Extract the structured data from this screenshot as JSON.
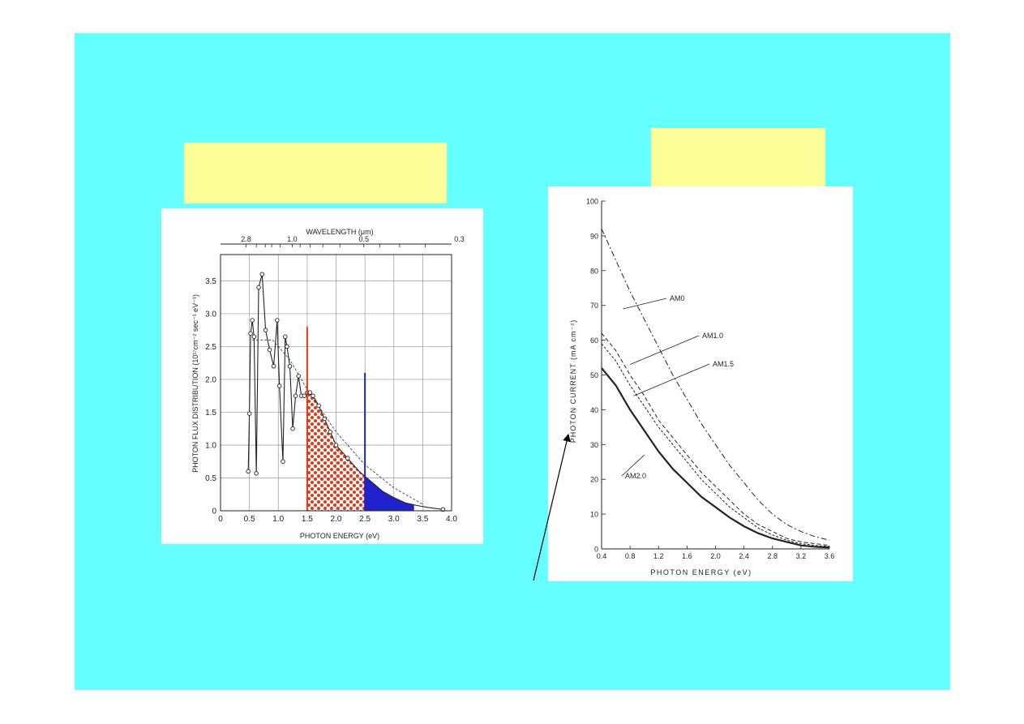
{
  "colors": {
    "slide_bg": "#66ffff",
    "caption_box": "#ffff99",
    "red_fill": "#ee3311",
    "blue_fill": "#2222cc"
  },
  "chart_data": [
    {
      "type": "line",
      "xlabel": "PHOTON ENERGY (eV)",
      "ylabel": "PHOTON FLUX DISTRIBUTION (10¹⁷cm⁻² sec⁻¹ eV⁻¹)",
      "top_axis_label": "WAVELENGTH (μm)",
      "top_axis_ticks": [
        "2.8",
        "1.0",
        "0.5",
        "0.3"
      ],
      "xlim": [
        0,
        4.0
      ],
      "ylim": [
        0,
        3.9
      ],
      "xticks": [
        "0",
        "0.5",
        "1.0",
        "1.5",
        "2.0",
        "2.5",
        "3.0",
        "3.5",
        "4.0"
      ],
      "yticks": [
        "0",
        "0.5",
        "1.0",
        "1.5",
        "2.0",
        "2.5",
        "3.0",
        "3.5"
      ],
      "grid": true,
      "series": [
        {
          "x": [
            0.48,
            0.5,
            0.52,
            0.55,
            0.58,
            0.62,
            0.66,
            0.72,
            0.78,
            0.85,
            0.92,
            0.98,
            1.02,
            1.08,
            1.12,
            1.15,
            1.2,
            1.25,
            1.3,
            1.35,
            1.4,
            1.45,
            1.5,
            1.55,
            1.6,
            1.7,
            1.8,
            1.9,
            2.0,
            2.2,
            2.4,
            2.6,
            2.8,
            3.0,
            3.2,
            3.4,
            3.6,
            3.85
          ],
          "y": [
            0.6,
            1.48,
            2.7,
            2.9,
            2.65,
            0.57,
            3.4,
            3.6,
            2.75,
            2.45,
            2.2,
            2.9,
            1.9,
            0.75,
            2.65,
            2.5,
            2.2,
            1.25,
            1.75,
            2.05,
            1.75,
            1.75,
            1.8,
            1.8,
            1.75,
            1.6,
            1.4,
            1.2,
            1.0,
            0.8,
            0.6,
            0.45,
            0.3,
            0.2,
            0.12,
            0.08,
            0.05,
            0.02
          ]
        }
      ],
      "annotations": [
        {
          "type": "vertical-line",
          "x": 1.5,
          "y_top": 2.8,
          "color": "#ee3311"
        },
        {
          "type": "vertical-line",
          "x": 2.5,
          "y_top": 2.1,
          "color": "#2222cc"
        },
        {
          "type": "shaded-dotted",
          "from_x": 1.5,
          "to_x": 2.5,
          "color": "#ee3311"
        },
        {
          "type": "shaded-solid",
          "from_x": 2.5,
          "to_x": 3.35,
          "color": "#2222cc"
        }
      ]
    },
    {
      "type": "line",
      "xlabel": "PHOTON ENERGY (eV)",
      "ylabel": "PHOTON CURRENT (mA cm⁻²)",
      "xlim": [
        0.4,
        3.6
      ],
      "ylim": [
        0,
        100
      ],
      "xticks": [
        "0.4",
        "0.8",
        "1.2",
        "1.6",
        "2.0",
        "2.4",
        "2.8",
        "3.2",
        "3.6"
      ],
      "yticks": [
        "0",
        "10",
        "20",
        "30",
        "40",
        "50",
        "60",
        "70",
        "80",
        "90",
        "100"
      ],
      "grid": false,
      "x": [
        0.4,
        0.6,
        0.8,
        1.0,
        1.2,
        1.4,
        1.6,
        1.8,
        2.0,
        2.2,
        2.4,
        2.6,
        2.8,
        3.0,
        3.2,
        3.4,
        3.6
      ],
      "series": [
        {
          "name": "AM0",
          "values": [
            92,
            83,
            74,
            66,
            58,
            50,
            43,
            36,
            30,
            24,
            19,
            14,
            10,
            7,
            5,
            3.5,
            2.5
          ]
        },
        {
          "name": "AM1.0",
          "values": [
            62,
            57,
            50,
            44,
            37,
            32,
            27,
            22,
            18,
            14,
            10,
            7,
            5,
            3,
            2,
            1.5,
            1
          ]
        },
        {
          "name": "AM1.5",
          "values": [
            59,
            54,
            47,
            41,
            35,
            30,
            25,
            20,
            16,
            12,
            9,
            6,
            4,
            2.5,
            1.5,
            1,
            0.7
          ]
        },
        {
          "name": "AM2.0",
          "values": [
            52,
            47,
            40,
            34,
            28,
            23,
            19,
            15,
            12,
            9,
            6.5,
            4.5,
            3,
            2,
            1,
            0.6,
            0.4
          ]
        }
      ]
    }
  ]
}
